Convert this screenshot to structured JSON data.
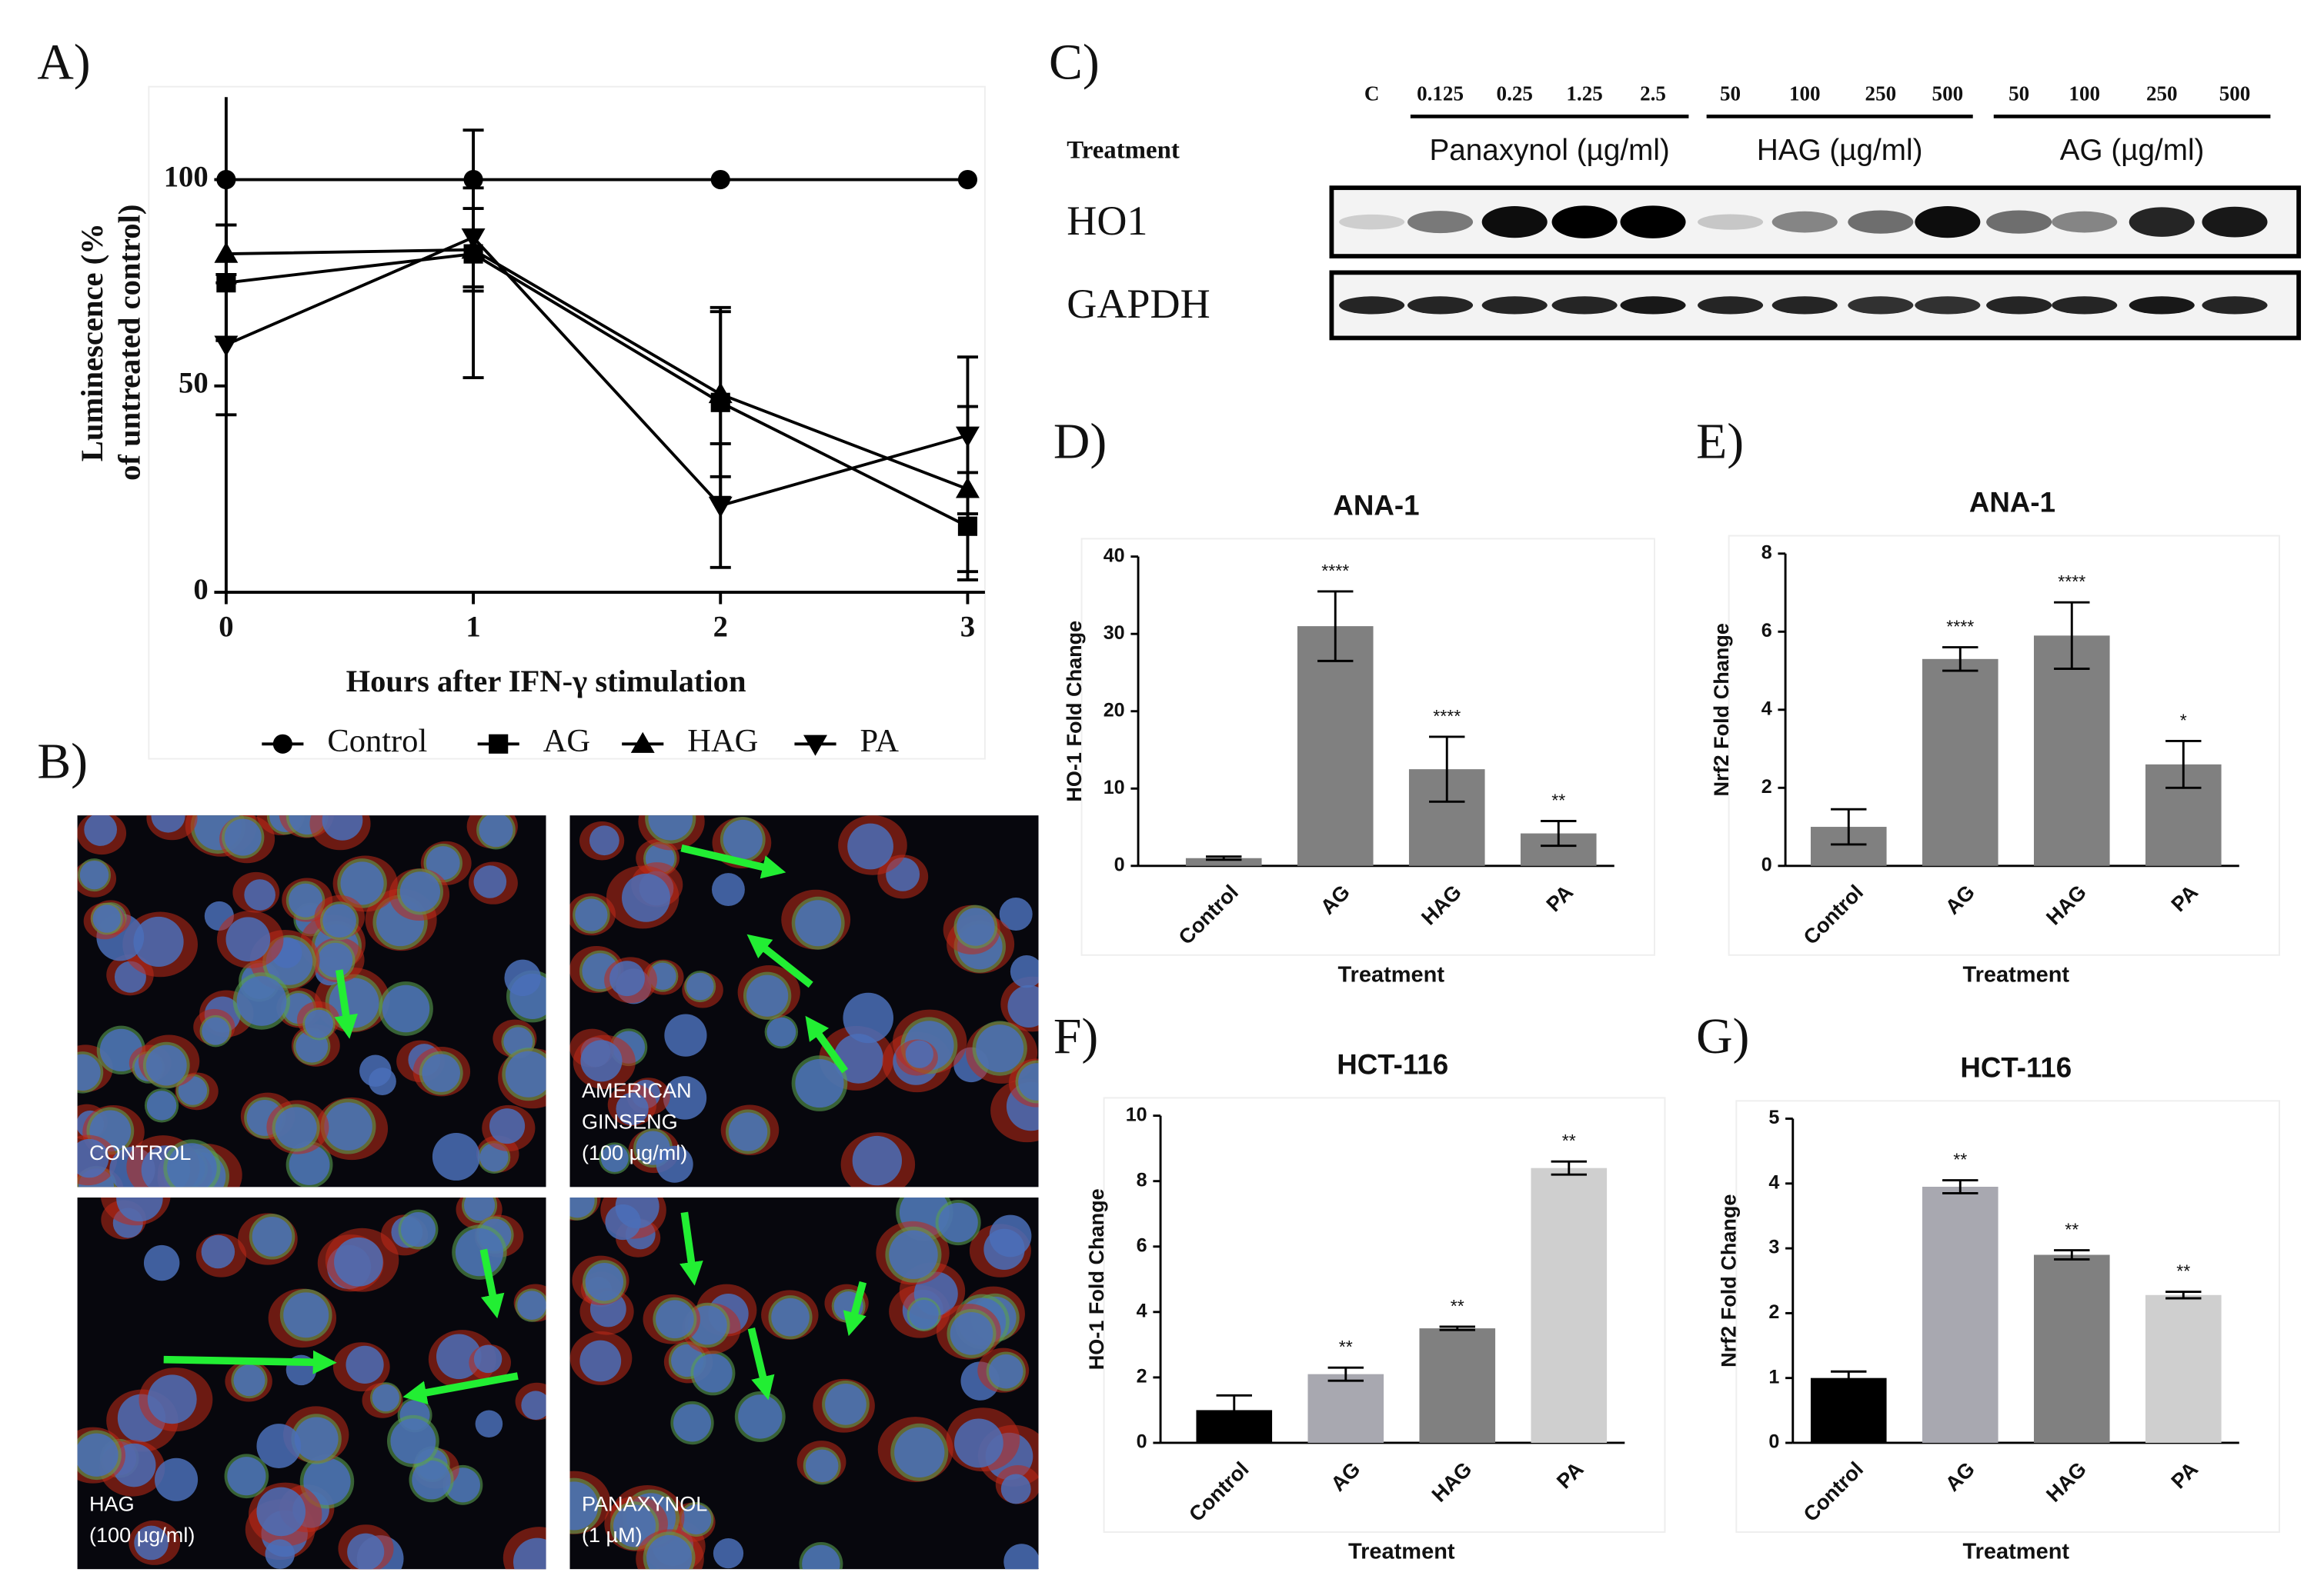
{
  "chart_data": [
    {
      "type": "line",
      "panel": "A)",
      "ylabel": [
        "Luminescence (%",
        "of untreated control)"
      ],
      "xlabel": "Hours after IFN-γ stimulation",
      "x": [
        0,
        1,
        2,
        3
      ],
      "xlim": [
        0,
        3.07
      ],
      "xticks": [
        0,
        1,
        2,
        3
      ],
      "ylim": [
        0,
        120
      ],
      "yticks": [
        0,
        50,
        100
      ],
      "legend": "bottom",
      "series": [
        {
          "name": "Control",
          "color": "#000000",
          "marker": "circle",
          "values": [
            100,
            100,
            100,
            100
          ]
        },
        {
          "name": "AG",
          "color": "#000000",
          "marker": "square",
          "values": [
            75,
            82,
            46,
            16
          ],
          "errors": [
            14,
            30,
            23,
            13
          ]
        },
        {
          "name": "HAG",
          "color": "#000000",
          "marker": "triangle-up",
          "values": [
            82,
            83,
            48,
            25
          ],
          "errors": [
            7,
            10,
            20,
            20
          ]
        },
        {
          "name": "PA",
          "color": "#000000",
          "marker": "triangle-down",
          "values": [
            60,
            86,
            21,
            38
          ],
          "errors": [
            17,
            12,
            15,
            19
          ]
        }
      ]
    },
    {
      "type": "bar",
      "panel": "D)",
      "title": "ANA-1",
      "ylabel": "HO-1 Fold Change",
      "xlabel": "Treatment",
      "categories": [
        "Control",
        "AG",
        "HAG",
        "PA"
      ],
      "values": [
        1,
        31,
        12.5,
        4.2
      ],
      "errors": [
        0.2,
        4.5,
        4.2,
        1.6
      ],
      "annotations": [
        null,
        "****",
        "****",
        "**"
      ],
      "colors": [
        "#808080",
        "#808080",
        "#808080",
        "#808080"
      ],
      "ylim": [
        0,
        40
      ],
      "yticks": [
        0,
        10,
        20,
        30,
        40
      ]
    },
    {
      "type": "bar",
      "panel": "E)",
      "title": "ANA-1",
      "ylabel": "Nrf2 Fold Change",
      "xlabel": "Treatment",
      "categories": [
        "Control",
        "AG",
        "HAG",
        "PA"
      ],
      "values": [
        1,
        5.3,
        5.9,
        2.6
      ],
      "errors": [
        0.45,
        0.3,
        0.85,
        0.6
      ],
      "annotations": [
        null,
        "****",
        "****",
        "*"
      ],
      "colors": [
        "#808080",
        "#808080",
        "#808080",
        "#808080"
      ],
      "ylim": [
        0,
        8
      ],
      "yticks": [
        0,
        2,
        4,
        6,
        8
      ]
    },
    {
      "type": "bar",
      "panel": "F)",
      "title": "HCT-116",
      "ylabel": "HO-1 Fold Change",
      "xlabel": "Treatment",
      "categories": [
        "Control",
        "AG",
        "HAG",
        "PA"
      ],
      "values": [
        1,
        2.1,
        3.5,
        8.4
      ],
      "errors": [
        0.45,
        0.2,
        0.05,
        0.2
      ],
      "annotations": [
        null,
        "**",
        "**",
        "**"
      ],
      "colors": [
        "#000000",
        "#a8a8b0",
        "#808080",
        "#cfcfcf"
      ],
      "ylim": [
        0,
        10
      ],
      "yticks": [
        0,
        2,
        4,
        6,
        8,
        10
      ]
    },
    {
      "type": "bar",
      "panel": "G)",
      "title": "HCT-116",
      "ylabel": "Nrf2 Fold Change",
      "xlabel": "Treatment",
      "categories": [
        "Control",
        "AG",
        "HAG",
        "PA"
      ],
      "values": [
        1,
        3.95,
        2.9,
        2.28
      ],
      "errors": [
        0.1,
        0.1,
        0.07,
        0.05
      ],
      "annotations": [
        null,
        "**",
        "**",
        "**"
      ],
      "colors": [
        "#000000",
        "#a8a8b0",
        "#808080",
        "#cfcfcf"
      ],
      "ylim": [
        0,
        5
      ],
      "yticks": [
        0,
        1,
        2,
        3,
        4,
        5
      ]
    }
  ],
  "blot": {
    "panel": "C)",
    "lanes": [
      "C",
      "0.125",
      "0.25",
      "1.25",
      "2.5",
      "50",
      "100",
      "250",
      "500",
      "50",
      "100",
      "250",
      "500"
    ],
    "treatment_label": "Treatment",
    "groups": [
      "Panaxynol (µg/ml)",
      "HAG (µg/ml)",
      "AG (µg/ml)"
    ],
    "rows": [
      "HO1",
      "GAPDH"
    ]
  },
  "micrographs": {
    "panel": "B)",
    "images": [
      {
        "lines": [
          "CONTROL"
        ]
      },
      {
        "lines": [
          "AMERICAN",
          "GINSENG",
          "(100 µg/ml)"
        ]
      },
      {
        "lines": [
          "HAG",
          "(100 µg/ml)"
        ]
      },
      {
        "lines": [
          "PANAXYNOL",
          "(1 µM)"
        ]
      }
    ]
  }
}
